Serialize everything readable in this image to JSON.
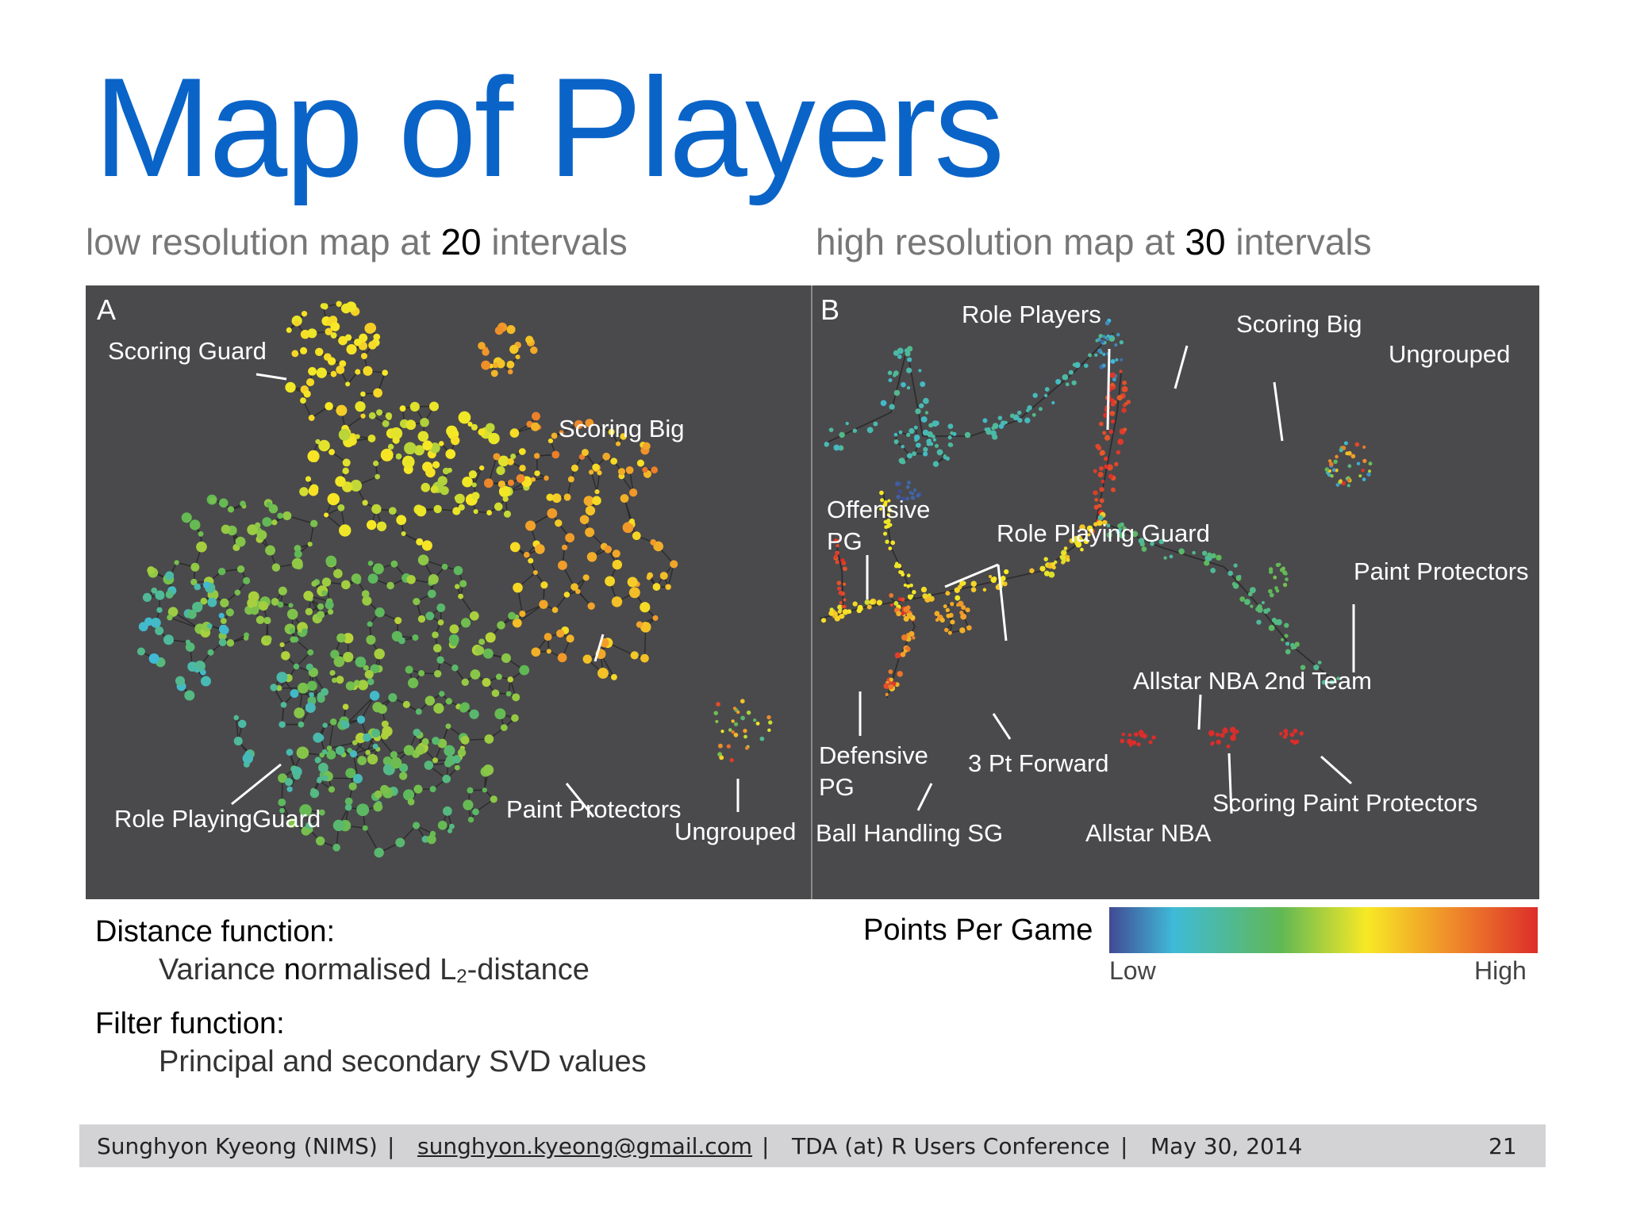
{
  "title": "Map of Players",
  "subtitles": {
    "left": {
      "pre": "low resolution map at ",
      "num": "20",
      "post": " intervals"
    },
    "right": {
      "pre": "high resolution map at ",
      "num": "30",
      "post": " intervals"
    }
  },
  "panel_a": {
    "letter": "A",
    "labels": {
      "scoring_guard": "Scoring Guard",
      "scoring_big": "Scoring Big",
      "role_playing_guard": "Role PlayingGuard",
      "paint_protectors": "Paint Protectors",
      "ungrouped": "Ungrouped"
    }
  },
  "panel_b": {
    "letter": "B",
    "labels": {
      "role_players": "Role Players",
      "scoring_big": "Scoring Big",
      "ungrouped": "Ungrouped",
      "offensive_pg_1": "Offensive",
      "offensive_pg_2": "PG",
      "role_playing_guard": "Role Playing Guard",
      "paint_protectors": "Paint Protectors",
      "allstar_2nd": "Allstar NBA 2nd Team",
      "defensive_pg_1": "Defensive",
      "defensive_pg_2": "PG",
      "three_pt_forward": "3 Pt Forward",
      "ball_handling_sg": "Ball Handling SG",
      "allstar_nba": "Allstar NBA",
      "scoring_paint_protectors": "Scoring Paint Protectors"
    }
  },
  "definitions": {
    "distance_head": "Distance function:",
    "distance_pre": "Variance ",
    "distance_n": "n",
    "distance_mid": "ormalised L",
    "distance_sub": "2",
    "distance_post": "-distance",
    "filter_head": "Filter function:",
    "filter_body": "Principal and secondary SVD values"
  },
  "colorbar": {
    "title": "Points Per Game",
    "low": "Low",
    "high": "High",
    "colors": [
      "#414a94",
      "#3fbad8",
      "#60b855",
      "#f7e925",
      "#ef8b2a",
      "#dd2d2a"
    ]
  },
  "footer": {
    "author": "Sunghyon Kyeong (NIMS)",
    "sep": "|",
    "email": "sunghyon.kyeong@gmail.com",
    "conference": "TDA (at) R Users Conference",
    "date": "May 30, 2014",
    "page": "21"
  }
}
